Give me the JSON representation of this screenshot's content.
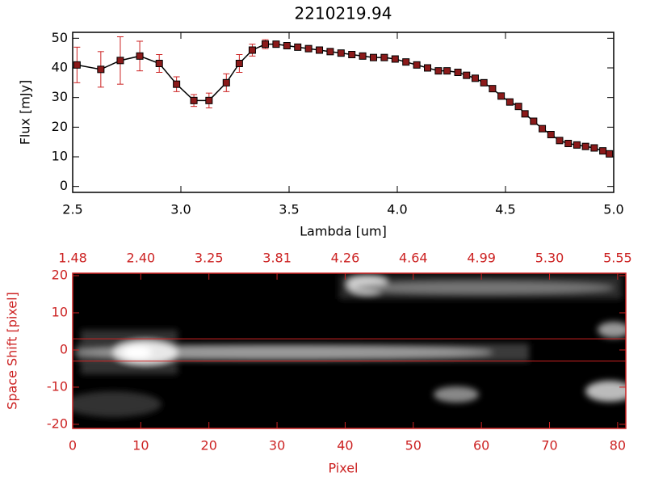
{
  "chart_data": [
    {
      "type": "errorline",
      "title": "2210219.94",
      "xlabel": "Lambda [um]",
      "ylabel": "Flux [mJy]",
      "x": [
        2.52,
        2.63,
        2.72,
        2.81,
        2.9,
        2.98,
        3.06,
        3.13,
        3.21,
        3.27,
        3.33,
        3.39,
        3.44,
        3.49,
        3.54,
        3.59,
        3.64,
        3.69,
        3.74,
        3.79,
        3.84,
        3.89,
        3.94,
        3.99,
        4.04,
        4.09,
        4.14,
        4.19,
        4.23,
        4.28,
        4.32,
        4.36,
        4.4,
        4.44,
        4.48,
        4.52,
        4.56,
        4.59,
        4.63,
        4.67,
        4.71,
        4.75,
        4.79,
        4.83,
        4.87,
        4.91,
        4.95,
        4.98
      ],
      "series": [
        {
          "color": "#000000",
          "marker_color": "#8b1a1a",
          "error_color": "#cc2222",
          "values": [
            41,
            39.5,
            42.5,
            44,
            41.5,
            34.5,
            29,
            29,
            35,
            41.5,
            46,
            48,
            48,
            47.5,
            47,
            46.5,
            46,
            45.5,
            45,
            44.5,
            44,
            43.5,
            43.5,
            43,
            42,
            41,
            40,
            39,
            39,
            38.5,
            37.5,
            36.5,
            35,
            33,
            30.5,
            28.5,
            27,
            24.5,
            22,
            19.5,
            17.5,
            15.5,
            14.5,
            14,
            13.5,
            13,
            12,
            11
          ],
          "errors": [
            6,
            6,
            8,
            5,
            3,
            2.5,
            2,
            2.5,
            3,
            3,
            2,
            1.5,
            1,
            1,
            1,
            1,
            1,
            1,
            1,
            1,
            1,
            1,
            1,
            1,
            1,
            1,
            1,
            1,
            1,
            1,
            1,
            1,
            1,
            1,
            1,
            1,
            1,
            1,
            1,
            1,
            1,
            1,
            1,
            1,
            1,
            1,
            1,
            1
          ]
        }
      ],
      "xlim": [
        2.5,
        5.0
      ],
      "ylim": [
        -2,
        52
      ],
      "xticks": [
        2.5,
        {
          "value": 3,
          "label": "3.0"
        },
        3.5,
        {
          "value": 4,
          "label": "4.0"
        },
        4.5,
        {
          "value": 5,
          "label": "5.0"
        }
      ],
      "yticks": [
        0,
        10,
        20,
        30,
        40,
        50
      ]
    },
    {
      "type": "image",
      "xlabel": "Pixel",
      "ylabel": "Space Shift [pixel]",
      "color": "#cc2222",
      "xlim": [
        0,
        81.2
      ],
      "ylim": [
        -21.1,
        20.65
      ],
      "xticks": [
        0,
        10,
        20,
        30,
        40,
        50,
        60,
        70,
        80
      ],
      "x2ticks": [
        {
          "value": 0,
          "label": "1.48"
        },
        {
          "value": 10,
          "label": "2.40"
        },
        {
          "value": 20,
          "label": "3.25"
        },
        {
          "value": 30,
          "label": "3.81"
        },
        {
          "value": 40,
          "label": "4.26"
        },
        {
          "value": 50,
          "label": "4.64"
        },
        {
          "value": 60,
          "label": "4.99"
        },
        {
          "value": 70,
          "label": "5.30"
        },
        {
          "value": 80,
          "label": "5.55"
        }
      ],
      "yticks": [
        -20,
        -10,
        0,
        10,
        20
      ],
      "hlines": [
        3,
        -3
      ]
    }
  ]
}
